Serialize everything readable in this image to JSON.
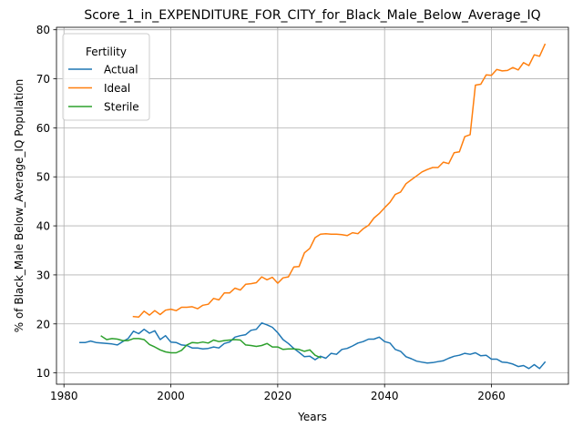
{
  "chart_data": {
    "type": "line",
    "title": "Score_1_in_EXPENDITURE_FOR_CITY_for_Black_Male_Below_Average_IQ",
    "xlabel": "Years",
    "ylabel": "% of Black_Male Below_Average_IQ Population",
    "xlim": [
      1978.6,
      2074.4
    ],
    "ylim": [
      7.7,
      80.5
    ],
    "xticks": [
      1980,
      2000,
      2020,
      2040,
      2060
    ],
    "yticks": [
      10,
      20,
      30,
      40,
      50,
      60,
      70,
      80
    ],
    "grid": true,
    "legend": {
      "title": "Fertility",
      "placement": "top-left"
    },
    "series": [
      {
        "name": "Actual",
        "color": "#1f77b4",
        "x": [
          1983,
          1984,
          1985,
          1986,
          1987,
          1988,
          1989,
          1990,
          1991,
          1992,
          1993,
          1994,
          1995,
          1996,
          1997,
          1998,
          1999,
          2000,
          2001,
          2002,
          2003,
          2004,
          2005,
          2006,
          2007,
          2008,
          2009,
          2010,
          2011,
          2012,
          2013,
          2014,
          2015,
          2016,
          2017,
          2018,
          2019,
          2020,
          2021,
          2022,
          2023,
          2024,
          2025,
          2026,
          2027,
          2028,
          2029,
          2030,
          2031,
          2032,
          2033,
          2034,
          2035,
          2036,
          2037,
          2038,
          2039,
          2040,
          2041,
          2042,
          2043,
          2044,
          2045,
          2046,
          2047,
          2048,
          2049,
          2050,
          2051,
          2052,
          2053,
          2054,
          2055,
          2056,
          2057,
          2058,
          2059,
          2060,
          2061,
          2062,
          2063,
          2064,
          2065,
          2066,
          2067,
          2068,
          2069,
          2070
        ],
        "y": [
          16.2,
          16.2,
          16.5,
          16.2,
          16.1,
          16.0,
          15.9,
          15.7,
          16.4,
          17.0,
          18.5,
          18.0,
          18.9,
          18.1,
          18.6,
          16.8,
          17.6,
          16.3,
          16.2,
          15.7,
          15.6,
          15.1,
          15.1,
          14.9,
          15.0,
          15.3,
          15.1,
          16.0,
          16.3,
          17.3,
          17.6,
          17.8,
          18.7,
          18.9,
          20.2,
          19.8,
          19.3,
          18.2,
          16.8,
          16.0,
          15.0,
          14.2,
          13.3,
          13.4,
          12.7,
          13.4,
          13.0,
          14.0,
          13.8,
          14.8,
          15.0,
          15.5,
          16.1,
          16.4,
          16.9,
          16.9,
          17.3,
          16.4,
          16.1,
          14.8,
          14.4,
          13.3,
          12.9,
          12.4,
          12.2,
          12.0,
          12.1,
          12.3,
          12.5,
          13.0,
          13.4,
          13.6,
          14.0,
          13.8,
          14.1,
          13.5,
          13.6,
          12.8,
          12.8,
          12.2,
          12.1,
          11.8,
          11.3,
          11.5,
          10.9,
          11.7,
          10.9,
          12.2
        ]
      },
      {
        "name": "Ideal",
        "color": "#ff7f0e",
        "x": [
          1993,
          1994,
          1995,
          1996,
          1997,
          1998,
          1999,
          2000,
          2001,
          2002,
          2003,
          2004,
          2005,
          2006,
          2007,
          2008,
          2009,
          2010,
          2011,
          2012,
          2013,
          2014,
          2015,
          2016,
          2017,
          2018,
          2019,
          2020,
          2021,
          2022,
          2023,
          2024,
          2025,
          2026,
          2027,
          2028,
          2029,
          2030,
          2031,
          2032,
          2033,
          2034,
          2035,
          2036,
          2037,
          2038,
          2039,
          2040,
          2041,
          2042,
          2043,
          2044,
          2045,
          2046,
          2047,
          2048,
          2049,
          2050,
          2051,
          2052,
          2053,
          2054,
          2055,
          2056,
          2057,
          2058,
          2059,
          2060,
          2061,
          2062,
          2063,
          2064,
          2065,
          2066,
          2067,
          2068,
          2069,
          2070
        ],
        "y": [
          21.5,
          21.4,
          22.6,
          21.8,
          22.7,
          21.9,
          22.8,
          23.0,
          22.7,
          23.4,
          23.4,
          23.5,
          23.1,
          23.8,
          24.0,
          25.2,
          24.9,
          26.3,
          26.3,
          27.3,
          26.9,
          28.1,
          28.2,
          28.4,
          29.6,
          29.0,
          29.5,
          28.3,
          29.4,
          29.6,
          31.6,
          31.7,
          34.5,
          35.4,
          37.6,
          38.3,
          38.4,
          38.3,
          38.3,
          38.2,
          38.0,
          38.6,
          38.4,
          39.4,
          40.1,
          41.6,
          42.5,
          43.7,
          44.8,
          46.4,
          46.9,
          48.6,
          49.4,
          50.2,
          51.0,
          51.5,
          51.9,
          51.9,
          53.0,
          52.7,
          54.9,
          55.1,
          58.2,
          58.6,
          68.7,
          68.9,
          70.8,
          70.7,
          71.9,
          71.6,
          71.7,
          72.3,
          71.8,
          73.3,
          72.7,
          74.9,
          74.6,
          77.0
        ]
      },
      {
        "name": "Sterile",
        "color": "#2ca02c",
        "x": [
          1987,
          1988,
          1989,
          1990,
          1991,
          1992,
          1993,
          1994,
          1995,
          1996,
          1997,
          1998,
          1999,
          2000,
          2001,
          2002,
          2003,
          2004,
          2005,
          2006,
          2007,
          2008,
          2009,
          2010,
          2011,
          2012,
          2013,
          2014,
          2015,
          2016,
          2017,
          2018,
          2019,
          2020,
          2021,
          2022,
          2023,
          2024,
          2025,
          2026,
          2027,
          2028
        ],
        "y": [
          17.5,
          16.8,
          17.0,
          16.9,
          16.6,
          16.6,
          17.0,
          17.0,
          16.8,
          15.8,
          15.3,
          14.7,
          14.3,
          14.1,
          14.1,
          14.6,
          15.7,
          16.2,
          16.1,
          16.3,
          16.1,
          16.7,
          16.4,
          16.6,
          16.7,
          16.8,
          16.7,
          15.7,
          15.6,
          15.4,
          15.6,
          16.0,
          15.3,
          15.3,
          14.8,
          14.9,
          14.9,
          14.8,
          14.4,
          14.7,
          13.6,
          13.1
        ]
      }
    ]
  }
}
